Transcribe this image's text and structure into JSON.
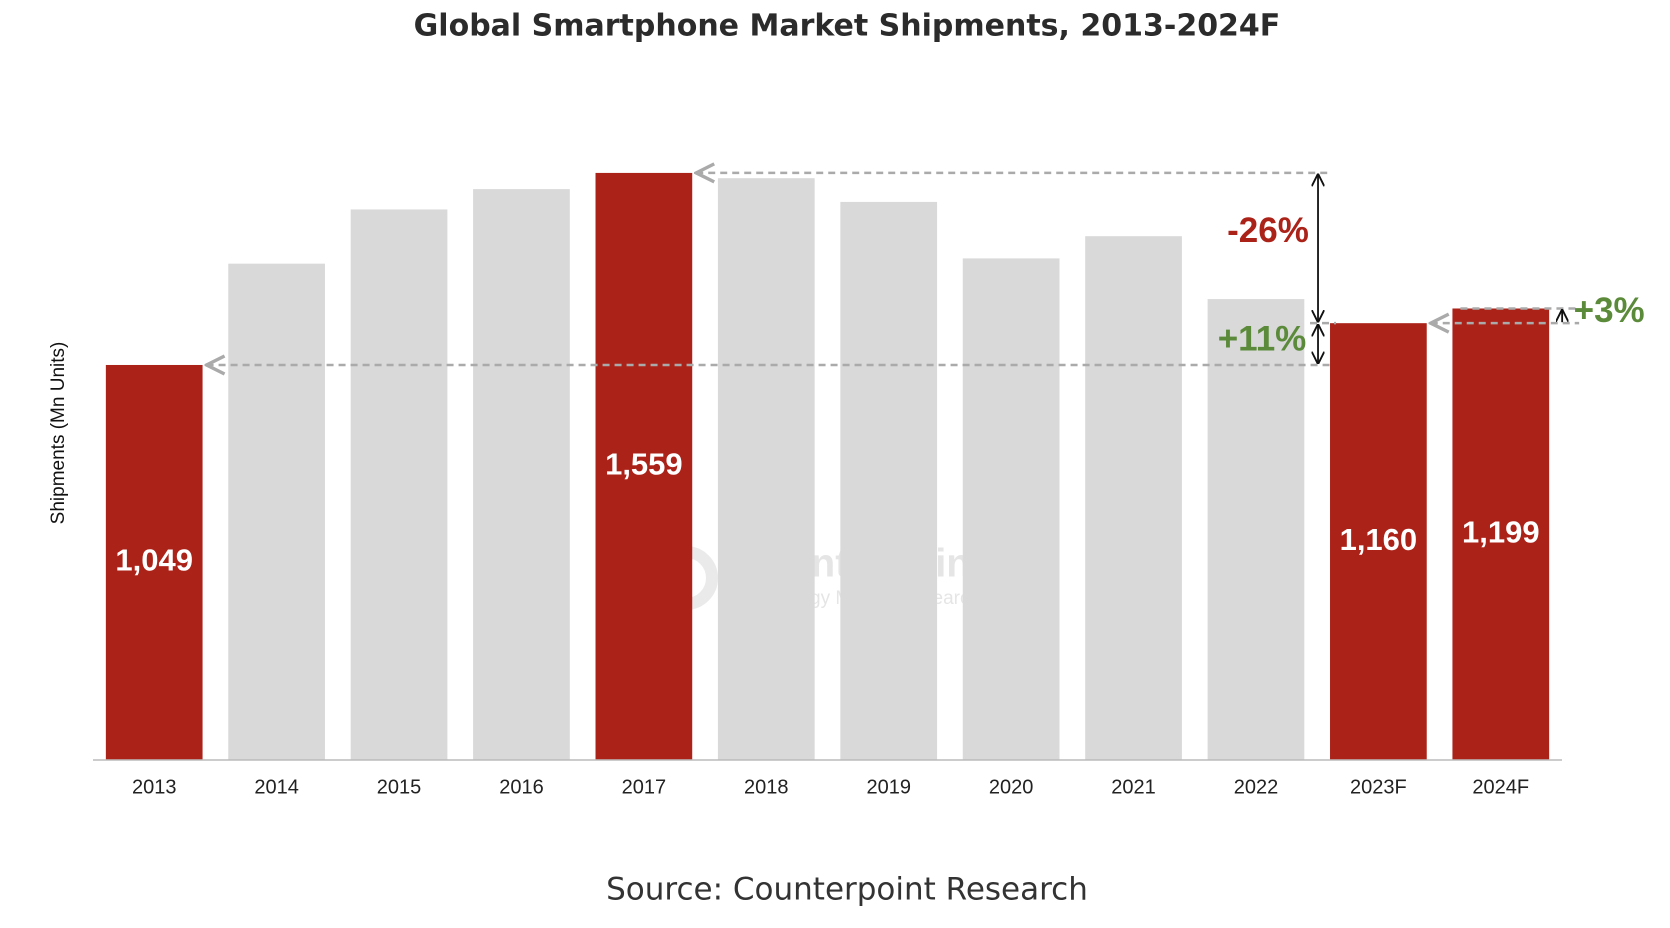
{
  "chart_data": {
    "type": "bar",
    "title": "Global Smartphone Market Shipments, 2013-2024F",
    "y_label": "Shipments (Mn Units)",
    "categories": [
      "2013",
      "2014",
      "2015",
      "2016",
      "2017",
      "2018",
      "2019",
      "2020",
      "2021",
      "2022",
      "2023F",
      "2024F"
    ],
    "values": [
      1049,
      1318,
      1462,
      1516,
      1559,
      1545,
      1482,
      1332,
      1391,
      1224,
      1160,
      1199
    ],
    "value_labels": [
      "1,049",
      null,
      null,
      null,
      "1,559",
      null,
      null,
      null,
      null,
      null,
      "1,160",
      "1,199"
    ],
    "colors": [
      "#ab2219",
      "#d9d9d9",
      "#d9d9d9",
      "#d9d9d9",
      "#ab2219",
      "#d9d9d9",
      "#d9d9d9",
      "#d9d9d9",
      "#d9d9d9",
      "#d9d9d9",
      "#ab2219",
      "#ab2219"
    ],
    "ylim": [
      0,
      1750
    ],
    "annotations": [
      {
        "text": "-26%",
        "color": "#ab2219"
      },
      {
        "text": "+11%",
        "color": "#5b8a3a"
      },
      {
        "text": "+3%",
        "color": "#5b8a3a"
      }
    ],
    "watermark": {
      "name": "Counterpoint",
      "tagline": "Technology Market Research"
    },
    "source": "Source: Counterpoint Research"
  }
}
